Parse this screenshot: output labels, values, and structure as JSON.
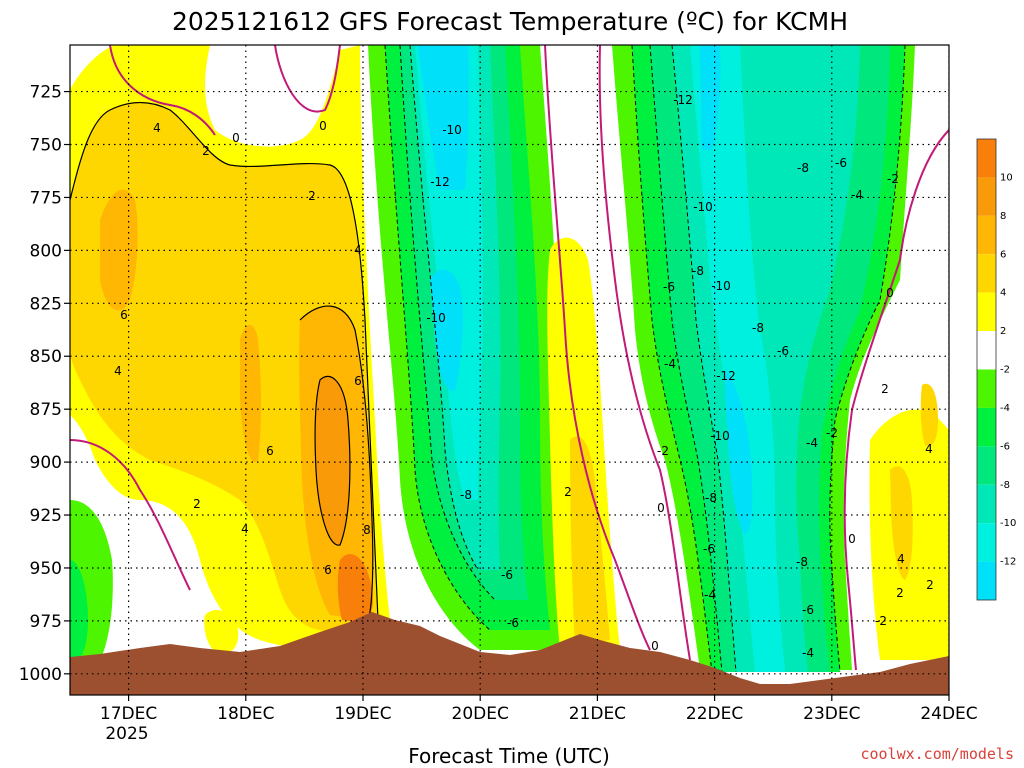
{
  "chart_data": {
    "type": "heatmap",
    "title": "2025121612 GFS Forecast Temperature (ºC) for KCMH",
    "xlabel": "Forecast Time (UTC)",
    "ylabel": "",
    "x_ticks": [
      "17DEC",
      "18DEC",
      "19DEC",
      "20DEC",
      "21DEC",
      "22DEC",
      "23DEC",
      "24DEC"
    ],
    "x_tick_year": "2025",
    "y_ticks": [
      "725",
      "750",
      "775",
      "800",
      "825",
      "850",
      "875",
      "900",
      "925",
      "950",
      "975",
      "1000"
    ],
    "y_values": [
      725,
      750,
      775,
      800,
      825,
      850,
      875,
      900,
      925,
      950,
      975,
      1000
    ],
    "ylim": [
      1010,
      703
    ],
    "xlim_days": [
      16.5,
      24.0
    ],
    "colorbar": {
      "labels": [
        "10",
        "8",
        "6",
        "4",
        "2",
        "-2",
        "-4",
        "-6",
        "-8",
        "-10",
        "-12"
      ],
      "colors": [
        "#f77f0a",
        "#f99a09",
        "#ffb703",
        "#ffd700",
        "#ffff00",
        "#ffffff",
        "#4ef500",
        "#00f040",
        "#00e87d",
        "#00e8b8",
        "#00f0e0",
        "#00e0f8"
      ]
    },
    "contour_labels": {
      "top": [
        "4",
        "2",
        "0",
        "0",
        "2",
        "4",
        "-10",
        "-12",
        "-12",
        "-10",
        "-8",
        "-6",
        "-4",
        "-2"
      ],
      "middle": [
        "6",
        "4",
        "6",
        "6",
        "-10",
        "-8",
        "-10",
        "-6",
        "-8",
        "-6",
        "0"
      ],
      "lower": [
        "2",
        "4",
        "8",
        "6",
        "-8",
        "-6",
        "-4",
        "2",
        "-2",
        "0",
        "-12",
        "-10",
        "-8",
        "-6",
        "-4",
        "-2",
        "4",
        "2"
      ],
      "bottom": [
        "0",
        "-8",
        "-6",
        "-4",
        "-4",
        "-6",
        "-2",
        "4",
        "2",
        "2",
        "0"
      ]
    }
  },
  "credit": "coolwx.com/models"
}
